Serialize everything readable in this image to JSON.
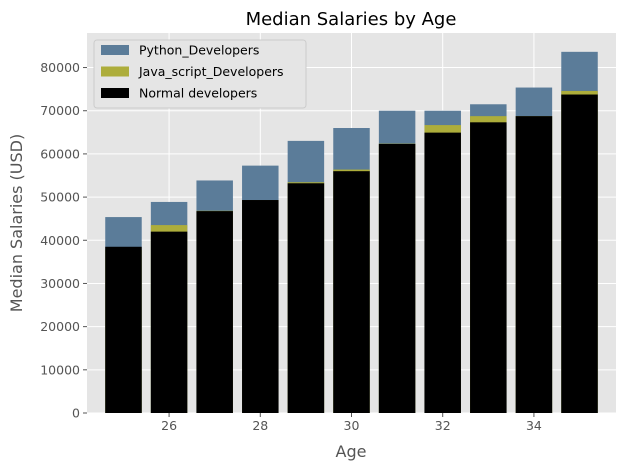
{
  "chart_data": {
    "type": "bar",
    "title": "Median Salaries by Age",
    "xlabel": "Age",
    "ylabel": "Median Salaries (USD)",
    "x": [
      25,
      26,
      27,
      28,
      29,
      30,
      31,
      32,
      33,
      34,
      35
    ],
    "xticks": [
      "26",
      "28",
      "30",
      "32",
      "34"
    ],
    "yticks": [
      "0",
      "10000",
      "20000",
      "30000",
      "40000",
      "50000",
      "60000",
      "70000",
      "80000"
    ],
    "xlim": [
      24.2,
      35.8
    ],
    "ylim": [
      0,
      88000
    ],
    "stacked": false,
    "overlapping": true,
    "grid": true,
    "legend_position": "top-left",
    "series": [
      {
        "name": "Python_Developers",
        "color": "#5b7c99",
        "values": [
          45372,
          48876,
          53850,
          57287,
          63016,
          65998,
          70003,
          70000,
          71496,
          75370,
          83640
        ]
      },
      {
        "name": "Java_script_Developers",
        "color": "#adad3b",
        "values": [
          37810,
          43515,
          46823,
          49293,
          53437,
          56373,
          62375,
          66674,
          68745,
          68746,
          74583
        ]
      },
      {
        "name": "Normal developers",
        "color": "#000000",
        "values": [
          38496,
          42000,
          46752,
          49320,
          53200,
          56000,
          62316,
          64928,
          67317,
          68748,
          73752
        ]
      }
    ]
  }
}
